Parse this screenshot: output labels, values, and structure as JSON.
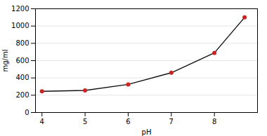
{
  "chart_data": {
    "type": "line",
    "x": [
      4,
      5,
      6,
      7,
      8,
      8.7
    ],
    "values": [
      245,
      255,
      325,
      460,
      690,
      1100
    ],
    "xlim": [
      3.85,
      9.0
    ],
    "ylim": [
      0,
      1200
    ],
    "xticks": [
      4,
      5,
      6,
      7,
      8
    ],
    "yticks": [
      0,
      200,
      400,
      600,
      800,
      1000,
      1200
    ],
    "xlabel": "pH",
    "ylabel": "mg/ml",
    "color": "#111111",
    "colors": [
      "#cc2222",
      "#cc2222",
      "#cc2222",
      "#cc2222",
      "#cc2222",
      "#cc2222"
    ],
    "marker": "circle",
    "grid": "y"
  }
}
